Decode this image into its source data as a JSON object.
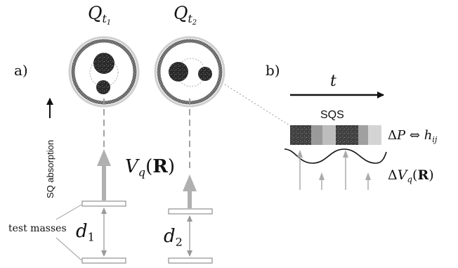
{
  "panels": {
    "a_label": "a)",
    "b_label": "b)"
  },
  "circles": {
    "q_t1": {
      "base": "Q",
      "sub": "t",
      "subsub": "1"
    },
    "q_t2": {
      "base": "Q",
      "sub": "t",
      "subsub": "2"
    }
  },
  "labels": {
    "sq_absorption": "SQ absorption",
    "test_masses": "test masses",
    "potential": {
      "base": "V",
      "sub": "q",
      "open": "(",
      "arg": "R",
      "close": ")"
    },
    "d1": {
      "base": "d",
      "sub": "1"
    },
    "d2": {
      "base": "d",
      "sub": "2"
    }
  },
  "panel_b": {
    "time_label": "t",
    "sqs_label": "SQS",
    "delta_p": {
      "delta": "Δ",
      "P": "P",
      "arrow": "⇔",
      "h": "h",
      "sub": "ij"
    },
    "delta_v": {
      "delta": "Δ",
      "V": "V",
      "sub": "q",
      "open": "(",
      "arg": "R",
      "close": ")"
    }
  },
  "colors": {
    "ink": "#111111",
    "gray_line": "#aaaaaa",
    "ring_dark": "#555555",
    "ring_light": "#bbbbbb",
    "blob": "#1a1a1a"
  }
}
